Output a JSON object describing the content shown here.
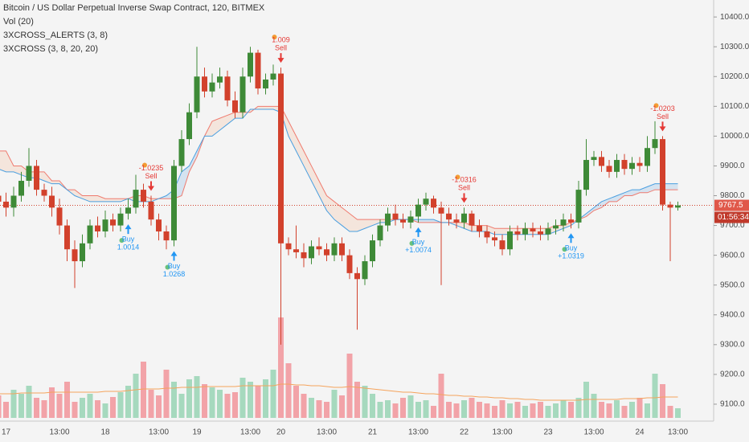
{
  "chart_data": {
    "type": "candlestick",
    "title": "Bitcoin / US Dollar Perpetual Inverse Swap Contract, 120, BITMEX",
    "studies": [
      "Vol (20)",
      "3XCROSS_ALERTS (3, 8)",
      "3XCROSS (3, 8, 20, 20)"
    ],
    "categories": [
      null,
      "17",
      null,
      null,
      null,
      null,
      null,
      null,
      "13:00",
      null,
      null,
      null,
      null,
      null,
      "18",
      null,
      null,
      null,
      null,
      null,
      null,
      "13:00",
      null,
      null,
      null,
      null,
      "19",
      null,
      null,
      null,
      null,
      null,
      null,
      "13:00",
      null,
      null,
      null,
      "20",
      null,
      null,
      null,
      null,
      null,
      "13:00",
      null,
      null,
      null,
      null,
      null,
      "21",
      null,
      null,
      null,
      null,
      null,
      "13:00",
      null,
      null,
      null,
      null,
      null,
      "22",
      null,
      null,
      null,
      null,
      "13:00",
      null,
      null,
      null,
      null,
      null,
      "23",
      null,
      null,
      null,
      null,
      null,
      "13:00",
      null,
      null,
      null,
      null,
      null,
      "24",
      null,
      null,
      null,
      null,
      "13:00"
    ],
    "open": [
      9800,
      9780,
      9760,
      9800,
      9850,
      9900,
      9820,
      9800,
      9760,
      9700,
      9620,
      9580,
      9640,
      9700,
      9680,
      9720,
      9700,
      9740,
      9760,
      9820,
      9780,
      9720,
      9680,
      9650,
      9900,
      9990,
      10080,
      10200,
      10150,
      10180,
      10200,
      10120,
      10080,
      10200,
      10280,
      10160,
      10190,
      10210,
      9640,
      9620,
      9610,
      9590,
      9630,
      9620,
      9600,
      9640,
      9600,
      9540,
      9520,
      9580,
      9650,
      9700,
      9740,
      9720,
      9710,
      9730,
      9770,
      9790,
      9760,
      9740,
      9720,
      9710,
      9740,
      9700,
      9680,
      9660,
      9650,
      9620,
      9680,
      9670,
      9690,
      9680,
      9670,
      9690,
      9700,
      9720,
      9710,
      9820,
      9920,
      9930,
      9900,
      9880,
      9920,
      9890,
      9910,
      9900,
      9960,
      9990,
      9770,
      9760
    ],
    "high": [
      9830,
      9810,
      9830,
      9880,
      9960,
      9920,
      9840,
      9830,
      9790,
      9720,
      9650,
      9670,
      9720,
      9730,
      9750,
      9740,
      9760,
      9790,
      9870,
      9840,
      9800,
      9740,
      9700,
      9920,
      10020,
      10110,
      10300,
      10230,
      10210,
      10230,
      10220,
      10150,
      10230,
      10300,
      10290,
      10210,
      10240,
      10230,
      9660,
      9700,
      9640,
      9650,
      9660,
      9640,
      9660,
      9660,
      9620,
      9560,
      9600,
      9670,
      9720,
      9760,
      9770,
      9740,
      9750,
      9790,
      9810,
      9800,
      9780,
      9760,
      9740,
      9760,
      9750,
      9720,
      9700,
      9680,
      9670,
      9700,
      9700,
      9710,
      9710,
      9700,
      9710,
      9720,
      9740,
      9740,
      9850,
      9990,
      9950,
      9950,
      9920,
      9940,
      9940,
      9930,
      9930,
      10000,
      10050,
      10000,
      9780,
      9780
    ],
    "low": [
      9700,
      9730,
      9730,
      9780,
      9830,
      9800,
      9780,
      9730,
      9670,
      9580,
      9490,
      9560,
      9620,
      9660,
      9660,
      9680,
      9680,
      9720,
      9740,
      9760,
      9700,
      9650,
      9620,
      9630,
      9880,
      9970,
      10060,
      10130,
      10130,
      10160,
      10100,
      10060,
      10060,
      10180,
      10140,
      10140,
      10170,
      9300,
      9600,
      9590,
      9560,
      9570,
      9600,
      9580,
      9580,
      9580,
      9520,
      9350,
      9500,
      9560,
      9630,
      9680,
      9700,
      9690,
      9690,
      9710,
      9750,
      9740,
      9500,
      9700,
      9690,
      9690,
      9680,
      9660,
      9640,
      9630,
      9600,
      9600,
      9650,
      9650,
      9660,
      9650,
      9650,
      9670,
      9680,
      9690,
      9690,
      9800,
      9900,
      9880,
      9860,
      9860,
      9870,
      9870,
      9880,
      9880,
      9940,
      9750,
      9580,
      9750
    ],
    "close": [
      9780,
      9760,
      9800,
      9850,
      9900,
      9820,
      9800,
      9760,
      9700,
      9620,
      9580,
      9640,
      9700,
      9680,
      9720,
      9700,
      9740,
      9760,
      9820,
      9780,
      9720,
      9680,
      9650,
      9900,
      9990,
      10080,
      10200,
      10150,
      10180,
      10200,
      10120,
      10080,
      10200,
      10280,
      10160,
      10190,
      10210,
      9640,
      9620,
      9610,
      9590,
      9630,
      9620,
      9600,
      9640,
      9600,
      9540,
      9520,
      9580,
      9650,
      9700,
      9740,
      9720,
      9710,
      9730,
      9770,
      9790,
      9760,
      9740,
      9720,
      9710,
      9740,
      9700,
      9680,
      9660,
      9650,
      9620,
      9680,
      9670,
      9690,
      9680,
      9670,
      9690,
      9700,
      9720,
      9710,
      9820,
      9920,
      9930,
      9900,
      9880,
      9920,
      9890,
      9910,
      9900,
      9960,
      9990,
      9770,
      9760,
      9767.5
    ],
    "volume": [
      28,
      20,
      35,
      30,
      40,
      25,
      22,
      38,
      30,
      45,
      20,
      25,
      30,
      22,
      18,
      26,
      32,
      40,
      55,
      70,
      35,
      28,
      60,
      45,
      30,
      48,
      52,
      42,
      38,
      35,
      30,
      32,
      50,
      45,
      40,
      48,
      60,
      125,
      68,
      40,
      30,
      25,
      22,
      20,
      35,
      28,
      80,
      45,
      40,
      30,
      20,
      22,
      18,
      25,
      28,
      20,
      22,
      15,
      55,
      20,
      18,
      22,
      25,
      20,
      18,
      15,
      22,
      18,
      20,
      15,
      18,
      20,
      15,
      18,
      22,
      20,
      25,
      45,
      30,
      20,
      18,
      22,
      15,
      20,
      25,
      18,
      55,
      42,
      15,
      12
    ],
    "volume_ma": {
      "color": "#f5a35c",
      "values": [
        30,
        30,
        30,
        31,
        31,
        31,
        31,
        32,
        32,
        32,
        32,
        32,
        32,
        32,
        33,
        33,
        33,
        34,
        35,
        36,
        36,
        36,
        37,
        37,
        38,
        38,
        38,
        39,
        39,
        39,
        39,
        39,
        40,
        40,
        40,
        40,
        40,
        42,
        42,
        41,
        41,
        40,
        40,
        39,
        38,
        38,
        39,
        38,
        37,
        36,
        35,
        34,
        33,
        32,
        32,
        31,
        30,
        30,
        29,
        28,
        28,
        27,
        27,
        26,
        26,
        25,
        25,
        24,
        24,
        23,
        23,
        22,
        22,
        22,
        22,
        22,
        22,
        23,
        23,
        23,
        23,
        23,
        24,
        24,
        24,
        25,
        25,
        26,
        26,
        26
      ]
    },
    "series": [
      {
        "color": "#ef7b6f",
        "values": [
          9950,
          9950,
          9900,
          9900,
          9880,
          9880,
          9880,
          9850,
          9850,
          9820,
          9820,
          9800,
          9800,
          9800,
          9790,
          9790,
          9790,
          9790,
          9800,
          9800,
          9790,
          9790,
          9790,
          9790,
          9800,
          9880,
          9930,
          10000,
          10050,
          10060,
          10070,
          10080,
          10080,
          10080,
          10100,
          10100,
          10100,
          10100,
          10050,
          10000,
          9950,
          9900,
          9850,
          9800,
          9780,
          9760,
          9740,
          9720,
          9720,
          9720,
          9720,
          9720,
          9720,
          9720,
          9720,
          9710,
          9710,
          9710,
          9710,
          9710,
          9710,
          9710,
          9700,
          9700,
          9700,
          9690,
          9690,
          9690,
          9690,
          9690,
          9690,
          9690,
          9690,
          9700,
          9700,
          9710,
          9720,
          9730,
          9750,
          9760,
          9780,
          9780,
          9800,
          9800,
          9810,
          9810,
          9820,
          9820,
          9820,
          9820
        ]
      },
      {
        "color": "#4a9fe0",
        "values": [
          9890,
          9880,
          9880,
          9870,
          9860,
          9860,
          9850,
          9840,
          9840,
          9820,
          9800,
          9790,
          9780,
          9780,
          9780,
          9780,
          9780,
          9790,
          9780,
          9780,
          9780,
          9790,
          9800,
          9820,
          9880,
          9900,
          9950,
          10000,
          10000,
          10020,
          10040,
          10060,
          10060,
          10090,
          10090,
          10090,
          10090,
          10080,
          10000,
          9950,
          9900,
          9850,
          9800,
          9750,
          9720,
          9700,
          9680,
          9680,
          9690,
          9700,
          9710,
          9710,
          9720,
          9720,
          9720,
          9720,
          9720,
          9720,
          9710,
          9710,
          9700,
          9690,
          9680,
          9680,
          9680,
          9670,
          9670,
          9670,
          9670,
          9670,
          9670,
          9670,
          9670,
          9680,
          9690,
          9700,
          9720,
          9740,
          9760,
          9780,
          9790,
          9800,
          9810,
          9820,
          9820,
          9830,
          9840,
          9840,
          9840,
          9840
        ]
      }
    ],
    "signals": [
      {
        "kind": "Buy",
        "text": "1.0014",
        "candle": 17
      },
      {
        "kind": "Buy",
        "text": "1.0268",
        "candle": 23
      },
      {
        "kind": "Buy",
        "text": "+1.0074",
        "candle": 55
      },
      {
        "kind": "Buy",
        "text": "+1.0319",
        "candle": 75
      },
      {
        "kind": "Sell",
        "text": "-1.0235",
        "candle": 20
      },
      {
        "kind": "Sell",
        "text": "1.009",
        "candle": 37
      },
      {
        "kind": "Sell",
        "text": "-1.0316",
        "candle": 61
      },
      {
        "kind": "Sell",
        "text": "-1.0203",
        "candle": 87
      }
    ],
    "last_price": 9767.5,
    "countdown": "01:56:34",
    "up_color": "#3e8a37",
    "down_color": "#d2412c",
    "up_volume_color": "#a6d9be",
    "down_volume_color": "#f2a3a8",
    "ylim": [
      9054,
      10457
    ],
    "yticks": [
      {
        "value": 9100,
        "label": "9100.0"
      },
      {
        "value": 9200,
        "label": "9200.0"
      },
      {
        "value": 9300,
        "label": "9300.0"
      },
      {
        "value": 9400,
        "label": "9400.0"
      },
      {
        "value": 9500,
        "label": "9500.0"
      },
      {
        "value": 9600,
        "label": "9600.0"
      },
      {
        "value": 9700,
        "label": "9700.0"
      },
      {
        "value": 9800,
        "label": "9800.0"
      },
      {
        "value": 9900,
        "label": "9900.0"
      },
      {
        "value": 10000,
        "label": "10000.0"
      },
      {
        "value": 10100,
        "label": "10100.0"
      },
      {
        "value": 10200,
        "label": "10200.0"
      },
      {
        "value": 10300,
        "label": "10300.0"
      },
      {
        "value": 10400,
        "label": "10400.0"
      }
    ],
    "grid": false
  }
}
